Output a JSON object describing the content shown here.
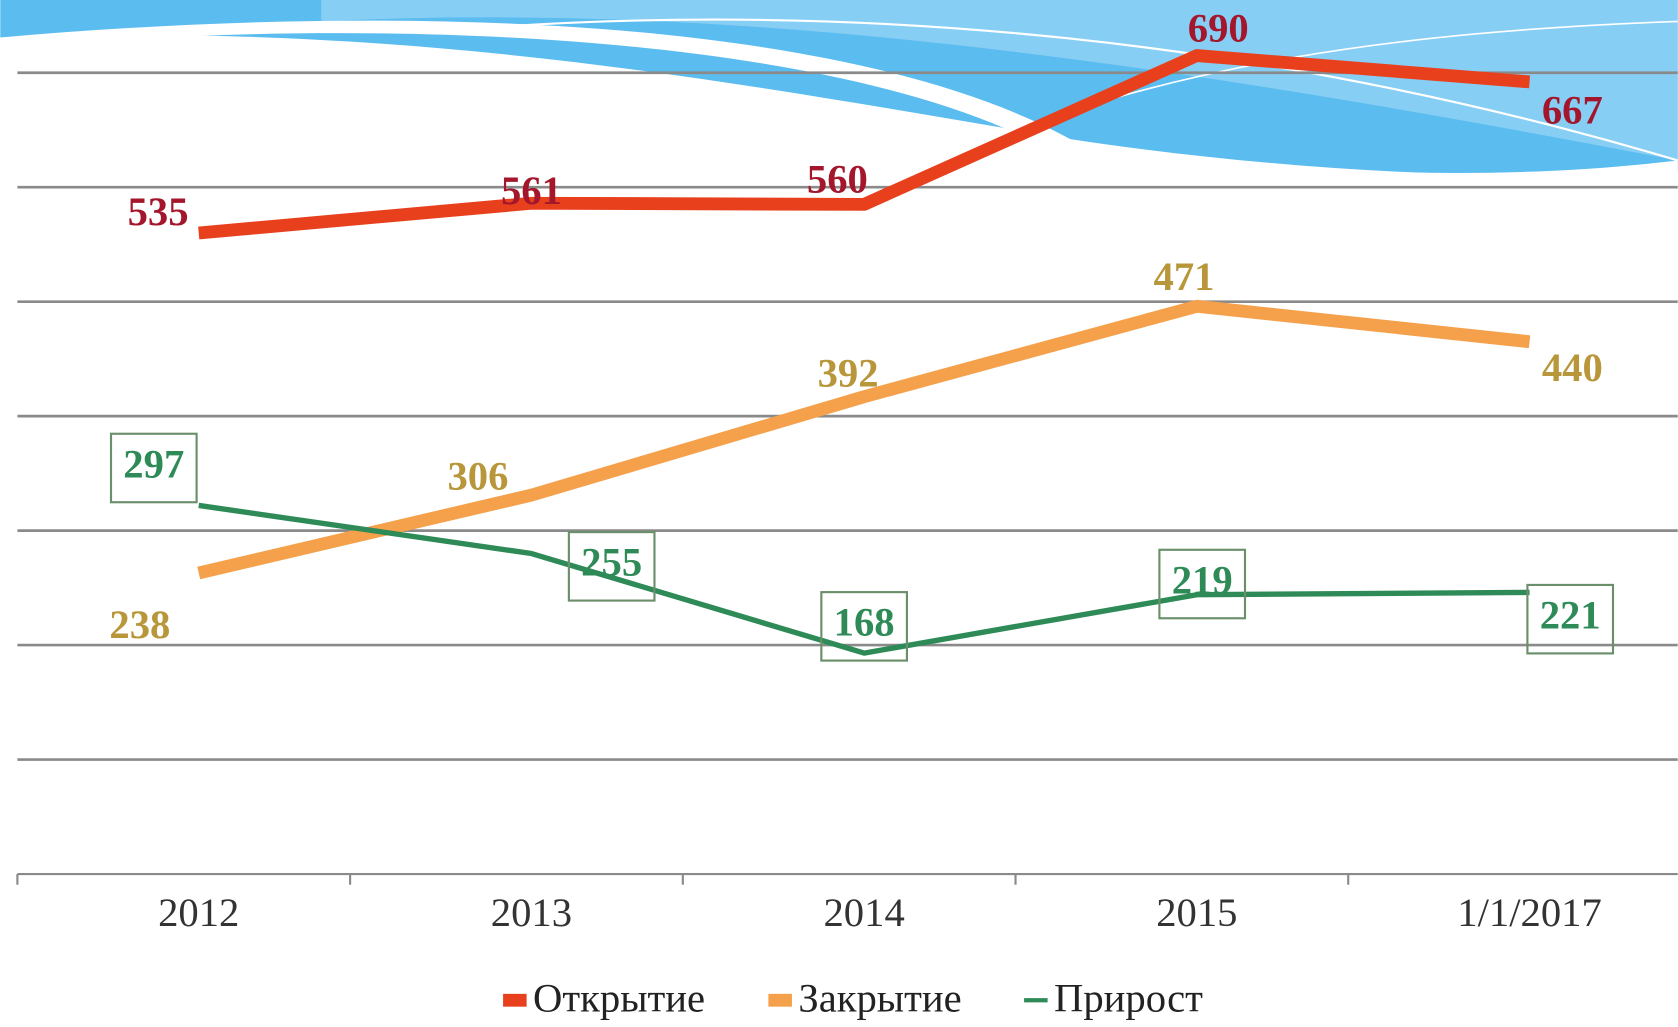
{
  "chart_data": {
    "type": "line",
    "categories": [
      "2012",
      "2013",
      "2014",
      "2015",
      "1/1/2017"
    ],
    "series": [
      {
        "name": "Открытие",
        "color": "#e8401c",
        "label_color": "#a3162b",
        "values": [
          535,
          561,
          560,
          690,
          667
        ]
      },
      {
        "name": "Закрытие",
        "color": "#f5a04a",
        "label_color": "#b8963a",
        "values": [
          238,
          306,
          392,
          471,
          440
        ]
      },
      {
        "name": "Прирост",
        "color": "#2e8b57",
        "label_color": "#2e8b57",
        "values": [
          297,
          255,
          168,
          219,
          221
        ]
      }
    ],
    "ylim": [
      -25,
      725
    ],
    "yticks": [
      -25,
      75,
      175,
      275,
      375,
      475,
      575,
      675
    ],
    "grid": true
  }
}
